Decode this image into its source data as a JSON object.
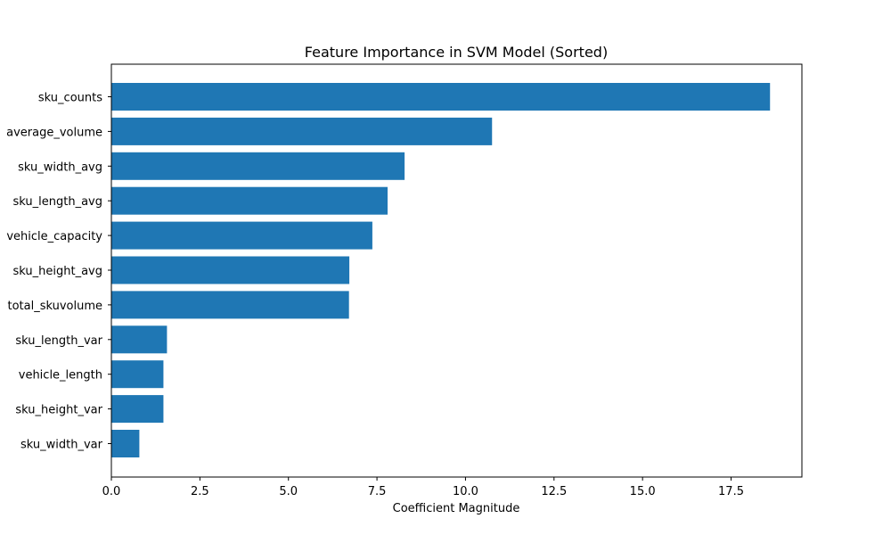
{
  "chart_data": {
    "type": "bar",
    "orientation": "horizontal",
    "title": "Feature Importance in SVM Model (Sorted)",
    "xlabel": "Coefficient Magnitude",
    "ylabel": "",
    "xlim": [
      0,
      19.5
    ],
    "grid": false,
    "legend": "none",
    "bar_color": "#1f77b4",
    "x_ticks": [
      0.0,
      2.5,
      5.0,
      7.5,
      10.0,
      12.5,
      15.0,
      17.5
    ],
    "x_tick_labels": [
      "0.0",
      "2.5",
      "5.0",
      "7.5",
      "10.0",
      "12.5",
      "15.0",
      "17.5"
    ],
    "categories": [
      "sku_counts",
      "average_volume",
      "sku_width_avg",
      "sku_length_avg",
      "vehicle_capacity",
      "sku_height_avg",
      "total_skuvolume",
      "sku_length_var",
      "vehicle_length",
      "sku_height_var",
      "sku_width_var"
    ],
    "values": [
      18.6,
      10.75,
      8.28,
      7.8,
      7.37,
      6.72,
      6.71,
      1.57,
      1.47,
      1.47,
      0.79
    ]
  }
}
